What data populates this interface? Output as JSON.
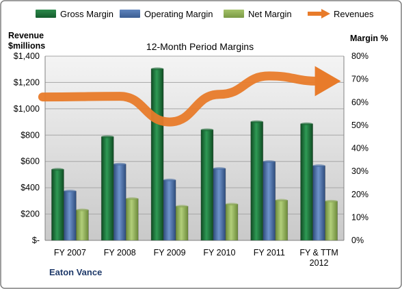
{
  "legend": {
    "items": [
      {
        "label": "Gross Margin",
        "color": "#1a6b35",
        "kind": "bar"
      },
      {
        "label": "Operating Margin",
        "color": "#4a6fa8",
        "kind": "bar"
      },
      {
        "label": "Net Margin",
        "color": "#8fae56",
        "kind": "bar"
      },
      {
        "label": "Revenues",
        "color": "#e87b2a",
        "kind": "arrow"
      }
    ]
  },
  "axes": {
    "left_title_line1": "Revenue",
    "left_title_line2": "$millions",
    "right_title": "Margin %"
  },
  "company": "Eaton Vance",
  "chart_data": {
    "type": "bar",
    "title": "12-Month Period Margins",
    "categories": [
      "FY 2007",
      "FY 2008",
      "FY 2009",
      "FY 2010",
      "FY 2011",
      "FY & TTM\n2012"
    ],
    "left_axis": {
      "label": "Revenue $millions",
      "ylim": [
        0,
        1400
      ],
      "ticks": [
        0,
        200,
        400,
        600,
        800,
        1000,
        1200,
        1400
      ],
      "tick_labels": [
        "$-",
        "$200",
        "$400",
        "$600",
        "$800",
        "$1,000",
        "$1,200",
        "$1,400"
      ]
    },
    "right_axis": {
      "label": "Margin %",
      "ylim": [
        0,
        80
      ],
      "ticks": [
        0,
        10,
        20,
        30,
        40,
        50,
        60,
        70,
        80
      ],
      "tick_labels": [
        "0%",
        "10%",
        "20%",
        "30%",
        "40%",
        "50%",
        "60%",
        "70%",
        "80%"
      ]
    },
    "series": [
      {
        "name": "Gross Margin",
        "axis": "right",
        "type": "bar",
        "color": "#1a6b35",
        "values": [
          30.8,
          45.0,
          74.5,
          48.0,
          51.5,
          50.6
        ]
      },
      {
        "name": "Operating Margin",
        "axis": "right",
        "type": "bar",
        "color": "#4a6fa8",
        "values": [
          21.4,
          33.1,
          26.2,
          31.2,
          34.2,
          32.4
        ]
      },
      {
        "name": "Net Margin",
        "axis": "right",
        "type": "bar",
        "color": "#8fae56",
        "values": [
          13.2,
          18.1,
          14.8,
          15.7,
          17.4,
          17.0
        ]
      },
      {
        "name": "Revenues",
        "axis": "left",
        "type": "line",
        "color": "#e87b2a",
        "values": [
          1090,
          1095,
          900,
          1110,
          1250,
          1210
        ]
      }
    ],
    "grid": true,
    "legend_position": "top"
  }
}
